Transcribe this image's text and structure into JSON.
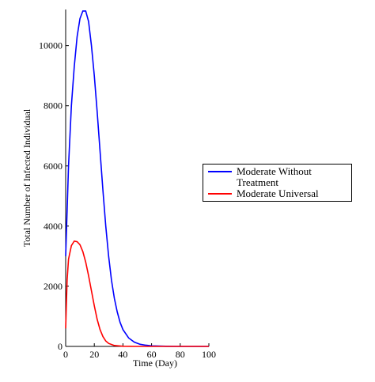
{
  "chart_data": {
    "type": "line",
    "xlabel": "Time (Day)",
    "ylabel": "Total Number of Infected Individual",
    "xlim": [
      0,
      100
    ],
    "xticks": [
      0,
      20,
      40,
      60,
      80,
      100
    ],
    "ylim": [
      0,
      11200
    ],
    "yticks": [
      0,
      2000,
      4000,
      6000,
      8000,
      10000
    ],
    "legend": "right",
    "series": [
      {
        "name": "Moderate Without Treatment",
        "color": "#0000ff",
        "x": [
          0,
          2,
          4,
          6,
          8,
          10,
          12,
          14,
          16,
          18,
          20,
          22,
          24,
          26,
          28,
          30,
          32,
          34,
          36,
          38,
          40,
          44,
          48,
          52,
          56,
          60,
          70,
          80,
          100
        ],
        "values": [
          3000,
          6000,
          8000,
          9300,
          10300,
          10900,
          11150,
          11150,
          10800,
          10000,
          9000,
          7800,
          6500,
          5200,
          4000,
          3000,
          2200,
          1600,
          1150,
          800,
          560,
          280,
          140,
          70,
          40,
          20,
          5,
          0,
          0
        ]
      },
      {
        "name": "Moderate Universal",
        "color": "#ff0000",
        "x": [
          0,
          1,
          2,
          4,
          6,
          8,
          10,
          12,
          14,
          16,
          18,
          20,
          22,
          24,
          26,
          28,
          30,
          34,
          40,
          50,
          100
        ],
        "values": [
          600,
          2200,
          2900,
          3350,
          3500,
          3480,
          3380,
          3150,
          2800,
          2350,
          1850,
          1350,
          900,
          560,
          330,
          180,
          100,
          30,
          5,
          0,
          0
        ]
      }
    ]
  }
}
